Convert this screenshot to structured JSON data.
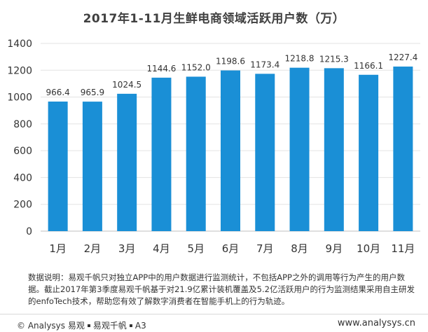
{
  "chart_data": {
    "type": "bar",
    "title": "2017年1-11月生鲜电商领域活跃用户数（万）",
    "categories": [
      "1月",
      "2月",
      "3月",
      "4月",
      "5月",
      "6月",
      "7月",
      "8月",
      "9月",
      "10月",
      "11月"
    ],
    "values": [
      966.4,
      965.9,
      1024.5,
      1144.6,
      1152.0,
      1198.6,
      1173.4,
      1218.8,
      1215.3,
      1166.1,
      1227.4
    ],
    "value_labels": [
      "966.4",
      "965.9",
      "1024.5",
      "1144.6",
      "1152.0",
      "1198.6",
      "1173.4",
      "1218.8",
      "1215.3",
      "1166.1",
      "1227.4"
    ],
    "yticks": [
      "0",
      "200",
      "400",
      "600",
      "800",
      "1000",
      "1200",
      "1400"
    ],
    "ylim": [
      0,
      1400
    ],
    "grid": true,
    "bar_color": "#1a8fd6"
  },
  "note": "数据说明：易观千帆只对独立APP中的用户数据进行监测统计，不包括APP之外的调用等行为产生的用户数据。截止2017年第3季度易观千帆基于对21.9亿累计装机覆盖及5.2亿活跃用户的行为监测结果采用自主研发的enfoTech技术，帮助您有效了解数字消费者在智能手机上的行为轨迹。",
  "footer": {
    "copyright_symbol": "©",
    "brand": "Analysys 易观",
    "product": "易观千帆",
    "page": "A3",
    "website": "www.analysys.cn"
  }
}
